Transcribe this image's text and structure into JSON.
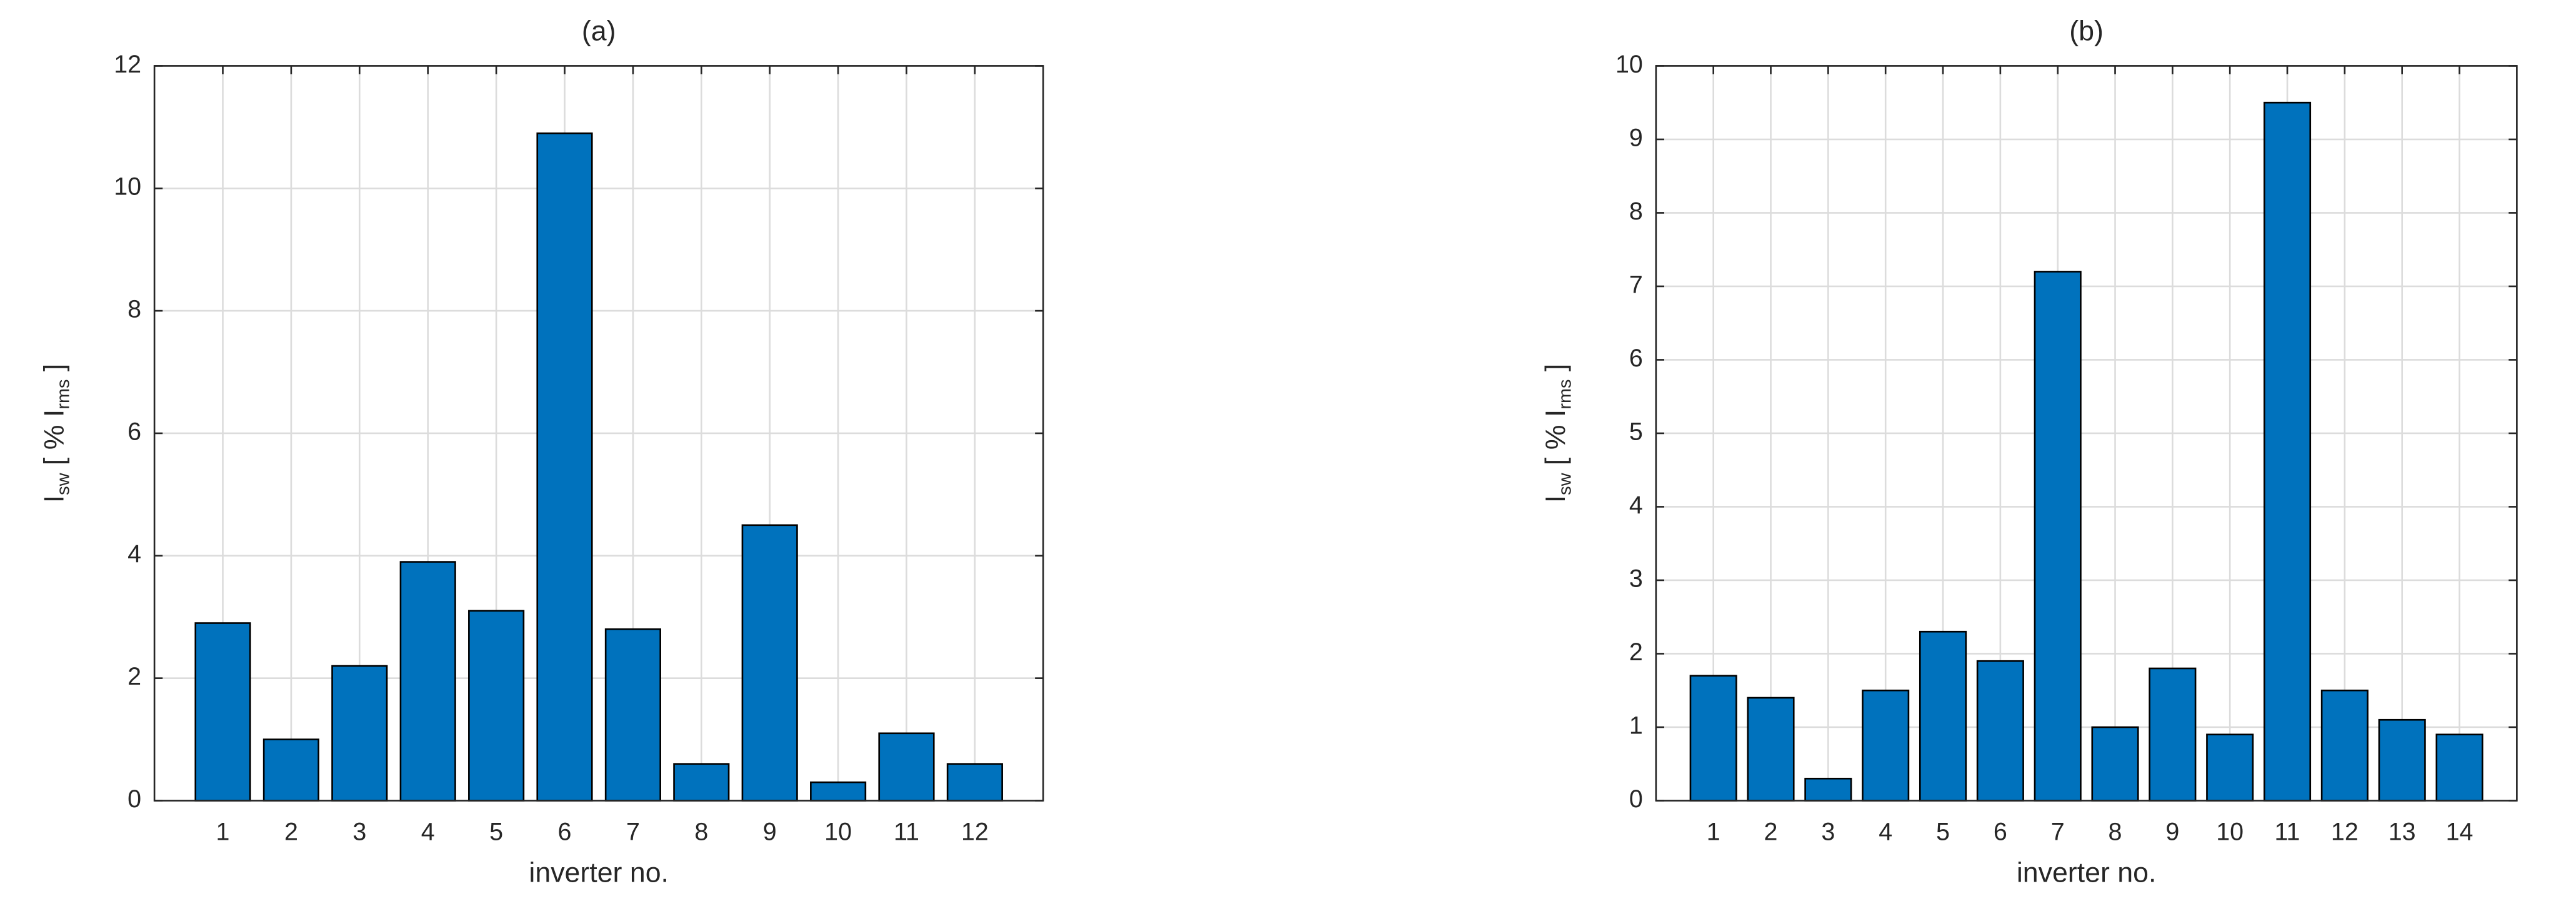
{
  "chart_data": [
    {
      "type": "bar",
      "title": "(a)",
      "xlabel": "inverter no.",
      "ylabel": [
        {
          "text": "I"
        },
        {
          "text": "sw",
          "sub": true
        },
        {
          "text": " [ % I"
        },
        {
          "text": "rms",
          "sub": true
        },
        {
          "text": " ]"
        }
      ],
      "categories": [
        "1",
        "2",
        "3",
        "4",
        "5",
        "6",
        "7",
        "8",
        "9",
        "10",
        "11",
        "12"
      ],
      "values": [
        2.9,
        1.0,
        2.2,
        3.9,
        3.1,
        10.9,
        2.8,
        0.6,
        4.5,
        0.3,
        1.1,
        0.6
      ],
      "color": "#0072bd",
      "ylim": [
        0,
        12
      ],
      "yticks": [
        0,
        2,
        4,
        6,
        8,
        10,
        12
      ],
      "grid": true
    },
    {
      "type": "bar",
      "title": "(b)",
      "xlabel": "inverter no.",
      "ylabel": [
        {
          "text": "I"
        },
        {
          "text": "sw",
          "sub": true
        },
        {
          "text": " [ % I"
        },
        {
          "text": "rms",
          "sub": true
        },
        {
          "text": " ]"
        }
      ],
      "categories": [
        "1",
        "2",
        "3",
        "4",
        "5",
        "6",
        "7",
        "8",
        "9",
        "10",
        "11",
        "12",
        "13",
        "14"
      ],
      "values": [
        1.7,
        1.4,
        0.3,
        1.5,
        2.3,
        1.9,
        7.2,
        1.0,
        1.8,
        0.9,
        9.5,
        1.5,
        1.1,
        0.9
      ],
      "color": "#0072bd",
      "ylim": [
        0,
        10
      ],
      "yticks": [
        0,
        1,
        2,
        3,
        4,
        5,
        6,
        7,
        8,
        9,
        10
      ],
      "grid": true
    }
  ]
}
